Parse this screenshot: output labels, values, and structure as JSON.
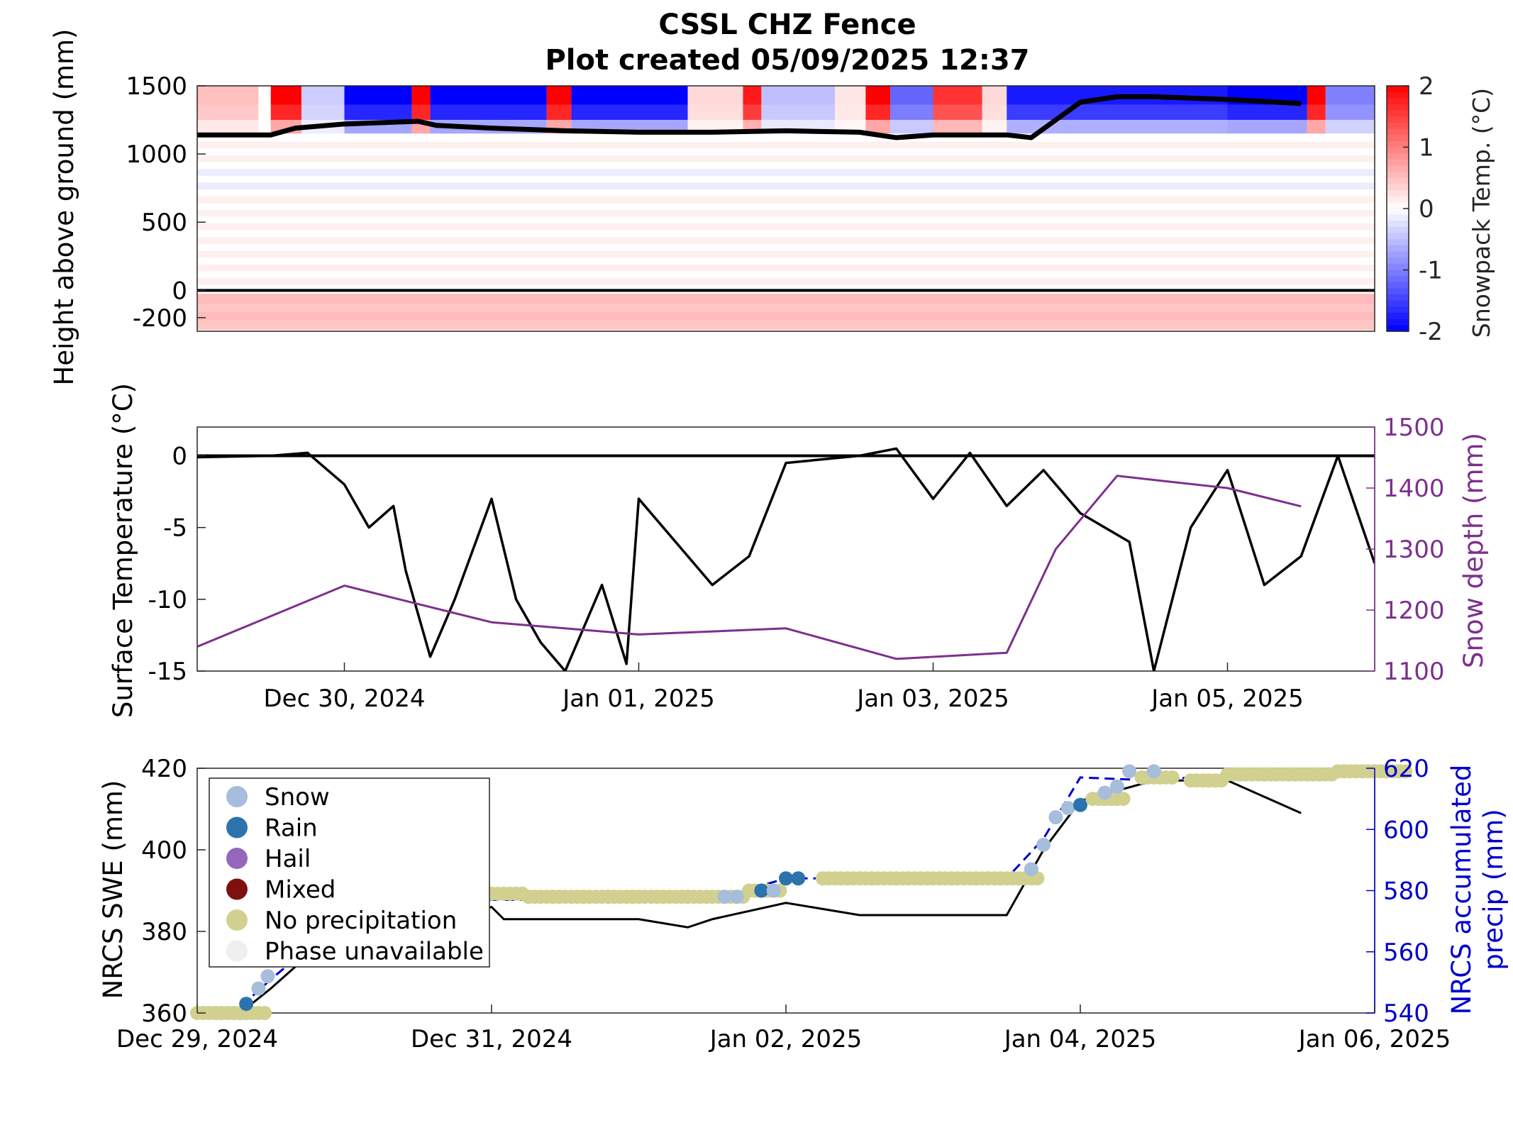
{
  "figure": {
    "title_line1": "CSSL CHZ Fence",
    "title_line2": "Plot created 05/09/2025 12:37"
  },
  "colors": {
    "warm": "#ff0000",
    "cold": "#0000ff",
    "snow_depth": "#7e2f8e",
    "precip_axis": "#0000cd",
    "snow_dot": "#a6bddb",
    "rain_dot": "#2b73ad",
    "hail_dot": "#9467bd",
    "mixed_dot": "#7f1010",
    "none_dot": "#d2d08f",
    "unavailable_dot": "#efefef"
  },
  "chart_data": [
    {
      "id": "snowpack_temperature",
      "type": "heatmap",
      "ylabel": "Height above ground (mm)",
      "colorbar_label": "Snowpack Temp. (°C)",
      "x_range": [
        "2024-12-29",
        "2025-01-06"
      ],
      "ylim": [
        -300,
        1500
      ],
      "yticks": [
        1500,
        1000,
        500,
        0,
        -200
      ],
      "clim": [
        -2,
        2
      ],
      "colorbar_ticks": [
        2,
        1,
        0,
        -1,
        -2
      ],
      "sensor_heights_mm": [
        -250,
        -180,
        -120,
        -60,
        50,
        150,
        250,
        350,
        450,
        550,
        650,
        750,
        850,
        950,
        1050,
        1150,
        1250,
        1350,
        1450
      ],
      "upper_layer_segments": [
        {
          "start": "2024-12-29 00:00",
          "end": "2024-12-29 10:00",
          "temp": 0.5
        },
        {
          "start": "2024-12-29 12:00",
          "end": "2024-12-29 17:00",
          "temp": 2.0
        },
        {
          "start": "2024-12-29 17:00",
          "end": "2024-12-30 00:00",
          "temp": -0.4
        },
        {
          "start": "2024-12-30 00:00",
          "end": "2024-12-30 11:00",
          "temp": -2.0
        },
        {
          "start": "2024-12-30 11:00",
          "end": "2024-12-30 14:00",
          "temp": 2.0
        },
        {
          "start": "2024-12-30 14:00",
          "end": "2024-12-31 09:00",
          "temp": -2.0
        },
        {
          "start": "2024-12-31 09:00",
          "end": "2024-12-31 13:00",
          "temp": 2.0
        },
        {
          "start": "2024-12-31 13:00",
          "end": "2025-01-01 08:00",
          "temp": -2.0
        },
        {
          "start": "2025-01-01 08:00",
          "end": "2025-01-01 17:00",
          "temp": 0.3
        },
        {
          "start": "2025-01-01 17:00",
          "end": "2025-01-01 20:00",
          "temp": 1.8
        },
        {
          "start": "2025-01-01 20:00",
          "end": "2025-01-02 08:00",
          "temp": -0.5
        },
        {
          "start": "2025-01-02 08:00",
          "end": "2025-01-02 13:00",
          "temp": 0.2
        },
        {
          "start": "2025-01-02 13:00",
          "end": "2025-01-02 17:00",
          "temp": 2.0
        },
        {
          "start": "2025-01-02 17:00",
          "end": "2025-01-03 00:00",
          "temp": -1.2
        },
        {
          "start": "2025-01-03 00:00",
          "end": "2025-01-03 08:00",
          "temp": 1.6
        },
        {
          "start": "2025-01-03 08:00",
          "end": "2025-01-03 12:00",
          "temp": 0.3
        },
        {
          "start": "2025-01-03 12:00",
          "end": "2025-01-05 00:00",
          "temp": -1.8
        },
        {
          "start": "2025-01-05 00:00",
          "end": "2025-01-05 13:00",
          "temp": -2.0
        },
        {
          "start": "2025-01-05 13:00",
          "end": "2025-01-05 16:00",
          "temp": 2.0
        },
        {
          "start": "2025-01-05 16:00",
          "end": "2025-01-06 00:00",
          "temp": -1.0
        }
      ],
      "snow_surface_line": [
        [
          "2024-12-29 00:00",
          1140
        ],
        [
          "2024-12-29 12:00",
          1140
        ],
        [
          "2024-12-29 16:00",
          1190
        ],
        [
          "2024-12-30 00:00",
          1220
        ],
        [
          "2024-12-30 12:00",
          1240
        ],
        [
          "2024-12-30 15:00",
          1210
        ],
        [
          "2024-12-31 00:00",
          1190
        ],
        [
          "2024-12-31 12:00",
          1170
        ],
        [
          "2025-01-01 00:00",
          1160
        ],
        [
          "2025-01-01 12:00",
          1160
        ],
        [
          "2025-01-02 00:00",
          1170
        ],
        [
          "2025-01-02 12:00",
          1160
        ],
        [
          "2025-01-02 18:00",
          1120
        ],
        [
          "2025-01-03 00:00",
          1140
        ],
        [
          "2025-01-03 12:00",
          1140
        ],
        [
          "2025-01-03 16:00",
          1120
        ],
        [
          "2025-01-03 20:00",
          1250
        ],
        [
          "2025-01-04 00:00",
          1380
        ],
        [
          "2025-01-04 06:00",
          1420
        ],
        [
          "2025-01-04 12:00",
          1420
        ],
        [
          "2025-01-05 00:00",
          1400
        ],
        [
          "2025-01-05 12:00",
          1370
        ]
      ]
    },
    {
      "id": "surface_temperature",
      "type": "line",
      "ylabel": "Surface Temperature (°C)",
      "y2label": "Snow depth (mm)",
      "x_range": [
        "2024-12-29",
        "2025-01-06"
      ],
      "xticks": [
        "Dec 30, 2024",
        "Jan 01, 2025",
        "Jan 03, 2025",
        "Jan 05, 2025"
      ],
      "ylim": [
        -15,
        2
      ],
      "yticks": [
        0,
        -5,
        -10,
        -15
      ],
      "y2lim": [
        1100,
        1500
      ],
      "y2ticks": [
        1500,
        1400,
        1300,
        1200,
        1100
      ],
      "series": [
        {
          "axis": "left",
          "points": [
            [
              "2024-12-29 00:00",
              -0.1
            ],
            [
              "2024-12-29 12:00",
              0.0
            ],
            [
              "2024-12-29 18:00",
              0.2
            ],
            [
              "2024-12-30 00:00",
              -2.0
            ],
            [
              "2024-12-30 04:00",
              -5.0
            ],
            [
              "2024-12-30 08:00",
              -3.5
            ],
            [
              "2024-12-30 10:00",
              -8.0
            ],
            [
              "2024-12-30 14:00",
              -14.0
            ],
            [
              "2024-12-30 18:00",
              -10.0
            ],
            [
              "2024-12-31 00:00",
              -3.0
            ],
            [
              "2024-12-31 04:00",
              -10.0
            ],
            [
              "2024-12-31 08:00",
              -13.0
            ],
            [
              "2024-12-31 12:00",
              -15.0
            ],
            [
              "2024-12-31 18:00",
              -9.0
            ],
            [
              "2024-12-31 22:00",
              -14.5
            ],
            [
              "2025-01-01 00:00",
              -3.0
            ],
            [
              "2025-01-01 06:00",
              -6.0
            ],
            [
              "2025-01-01 12:00",
              -9.0
            ],
            [
              "2025-01-01 18:00",
              -7.0
            ],
            [
              "2025-01-02 00:00",
              -0.5
            ],
            [
              "2025-01-02 12:00",
              0.0
            ],
            [
              "2025-01-02 18:00",
              0.5
            ],
            [
              "2025-01-03 00:00",
              -3.0
            ],
            [
              "2025-01-03 06:00",
              0.2
            ],
            [
              "2025-01-03 12:00",
              -3.5
            ],
            [
              "2025-01-03 18:00",
              -1.0
            ],
            [
              "2025-01-04 00:00",
              -4.0
            ],
            [
              "2025-01-04 08:00",
              -6.0
            ],
            [
              "2025-01-04 12:00",
              -15.0
            ],
            [
              "2025-01-04 18:00",
              -5.0
            ],
            [
              "2025-01-05 00:00",
              -1.0
            ],
            [
              "2025-01-05 06:00",
              -9.0
            ],
            [
              "2025-01-05 12:00",
              -7.0
            ],
            [
              "2025-01-05 18:00",
              0.0
            ],
            [
              "2025-01-06 00:00",
              -7.5
            ]
          ]
        },
        {
          "axis": "right",
          "points": [
            [
              "2024-12-29 00:00",
              1140
            ],
            [
              "2024-12-29 12:00",
              1190
            ],
            [
              "2024-12-30 00:00",
              1240
            ],
            [
              "2024-12-30 12:00",
              1210
            ],
            [
              "2024-12-31 00:00",
              1180
            ],
            [
              "2025-01-01 00:00",
              1160
            ],
            [
              "2025-01-02 00:00",
              1170
            ],
            [
              "2025-01-02 18:00",
              1120
            ],
            [
              "2025-01-03 12:00",
              1130
            ],
            [
              "2025-01-03 20:00",
              1300
            ],
            [
              "2025-01-04 06:00",
              1420
            ],
            [
              "2025-01-05 00:00",
              1400
            ],
            [
              "2025-01-05 12:00",
              1370
            ]
          ]
        }
      ]
    },
    {
      "id": "nrcs_swe_precip",
      "type": "line",
      "ylabel": "NRCS SWE (mm)",
      "y2label_line1": "NRCS accumulated",
      "y2label_line2": "precip (mm)",
      "x_range": [
        "2024-12-29",
        "2025-01-06"
      ],
      "xticks": [
        "Dec 29, 2024",
        "Dec 31, 2024",
        "Jan 02, 2025",
        "Jan 04, 2025",
        "Jan 06, 2025"
      ],
      "ylim": [
        360,
        420
      ],
      "yticks": [
        420,
        400,
        380,
        360
      ],
      "y2lim": [
        540,
        620
      ],
      "y2ticks": [
        620,
        600,
        580,
        560,
        540
      ],
      "legend": {
        "placement": "top-left",
        "entries": [
          "Snow",
          "Rain",
          "Hail",
          "Mixed",
          "No precipitation",
          "Phase unavailable"
        ]
      },
      "swe_series": [
        [
          "2024-12-29 00:00",
          360
        ],
        [
          "2024-12-29 07:00",
          360
        ],
        [
          "2024-12-29 12:00",
          366
        ],
        [
          "2024-12-29 18:00",
          374
        ],
        [
          "2024-12-31 00:00",
          386
        ],
        [
          "2024-12-31 02:00",
          383
        ],
        [
          "2025-01-01 00:00",
          383
        ],
        [
          "2025-01-01 08:00",
          381
        ],
        [
          "2025-01-01 12:00",
          383
        ],
        [
          "2025-01-02 00:00",
          387
        ],
        [
          "2025-01-02 12:00",
          384
        ],
        [
          "2025-01-03 00:00",
          384
        ],
        [
          "2025-01-03 12:00",
          384
        ],
        [
          "2025-01-03 18:00",
          400
        ],
        [
          "2025-01-04 00:00",
          412
        ],
        [
          "2025-01-04 12:00",
          417
        ],
        [
          "2025-01-05 00:00",
          417
        ],
        [
          "2025-01-05 12:00",
          409
        ]
      ],
      "precip_series": [
        [
          "2024-12-29 00:00",
          540
        ],
        [
          "2024-12-29 06:00",
          540
        ],
        [
          "2024-12-29 12:00",
          551
        ],
        [
          "2024-12-30 00:00",
          571
        ],
        [
          "2024-12-31 00:00",
          577
        ],
        [
          "2025-01-01 12:00",
          577
        ],
        [
          "2025-01-02 00:00",
          584
        ],
        [
          "2025-01-03 00:00",
          584
        ],
        [
          "2025-01-03 12:00",
          584
        ],
        [
          "2025-01-03 18:00",
          597
        ],
        [
          "2025-01-04 00:00",
          617
        ],
        [
          "2025-01-04 12:00",
          616
        ],
        [
          "2025-01-05 00:00",
          618
        ],
        [
          "2025-01-06 00:00",
          619
        ]
      ],
      "phase_points": [
        [
          "2024-12-29 00:00",
          540,
          "none"
        ],
        [
          "2024-12-29 03:00",
          540,
          "none"
        ],
        [
          "2024-12-29 06:00",
          540,
          "none"
        ],
        [
          "2024-12-29 08:00",
          543,
          "rain"
        ],
        [
          "2024-12-29 10:00",
          548,
          "snow"
        ],
        [
          "2024-12-29 11:30",
          552,
          "snow"
        ],
        [
          "2024-12-31 00:00",
          579,
          "none"
        ],
        [
          "2024-12-31 06:00",
          578,
          "none"
        ],
        [
          "2024-12-31 12:00",
          578,
          "none"
        ],
        [
          "2024-12-31 18:00",
          578,
          "none"
        ],
        [
          "2025-01-01 00:00",
          578,
          "none"
        ],
        [
          "2025-01-01 06:00",
          578,
          "none"
        ],
        [
          "2025-01-01 12:00",
          578,
          "none"
        ],
        [
          "2025-01-01 14:00",
          578,
          "snow"
        ],
        [
          "2025-01-01 16:00",
          578,
          "snow"
        ],
        [
          "2025-01-01 18:00",
          580,
          "none"
        ],
        [
          "2025-01-01 20:00",
          580,
          "rain"
        ],
        [
          "2025-01-01 22:00",
          580,
          "snow"
        ],
        [
          "2025-01-02 00:00",
          584,
          "rain"
        ],
        [
          "2025-01-02 02:00",
          584,
          "rain"
        ],
        [
          "2025-01-02 06:00",
          584,
          "none"
        ],
        [
          "2025-01-02 12:00",
          584,
          "none"
        ],
        [
          "2025-01-02 18:00",
          584,
          "none"
        ],
        [
          "2025-01-03 00:00",
          584,
          "none"
        ],
        [
          "2025-01-03 06:00",
          584,
          "none"
        ],
        [
          "2025-01-03 12:00",
          584,
          "none"
        ],
        [
          "2025-01-03 16:00",
          587,
          "snow"
        ],
        [
          "2025-01-03 18:00",
          595,
          "snow"
        ],
        [
          "2025-01-03 20:00",
          604,
          "snow"
        ],
        [
          "2025-01-03 22:00",
          607,
          "snow"
        ],
        [
          "2025-01-04 00:00",
          608,
          "rain"
        ],
        [
          "2025-01-04 02:00",
          610,
          "none"
        ],
        [
          "2025-01-04 04:00",
          612,
          "snow"
        ],
        [
          "2025-01-04 06:00",
          614,
          "snow"
        ],
        [
          "2025-01-04 08:00",
          619,
          "snow"
        ],
        [
          "2025-01-04 10:00",
          617,
          "none"
        ],
        [
          "2025-01-04 12:00",
          619,
          "snow"
        ],
        [
          "2025-01-04 18:00",
          616,
          "none"
        ],
        [
          "2025-01-05 00:00",
          618,
          "none"
        ],
        [
          "2025-01-05 06:00",
          618,
          "none"
        ],
        [
          "2025-01-05 12:00",
          618,
          "none"
        ],
        [
          "2025-01-05 18:00",
          619,
          "none"
        ],
        [
          "2025-01-06 00:00",
          619,
          "none"
        ]
      ]
    }
  ]
}
